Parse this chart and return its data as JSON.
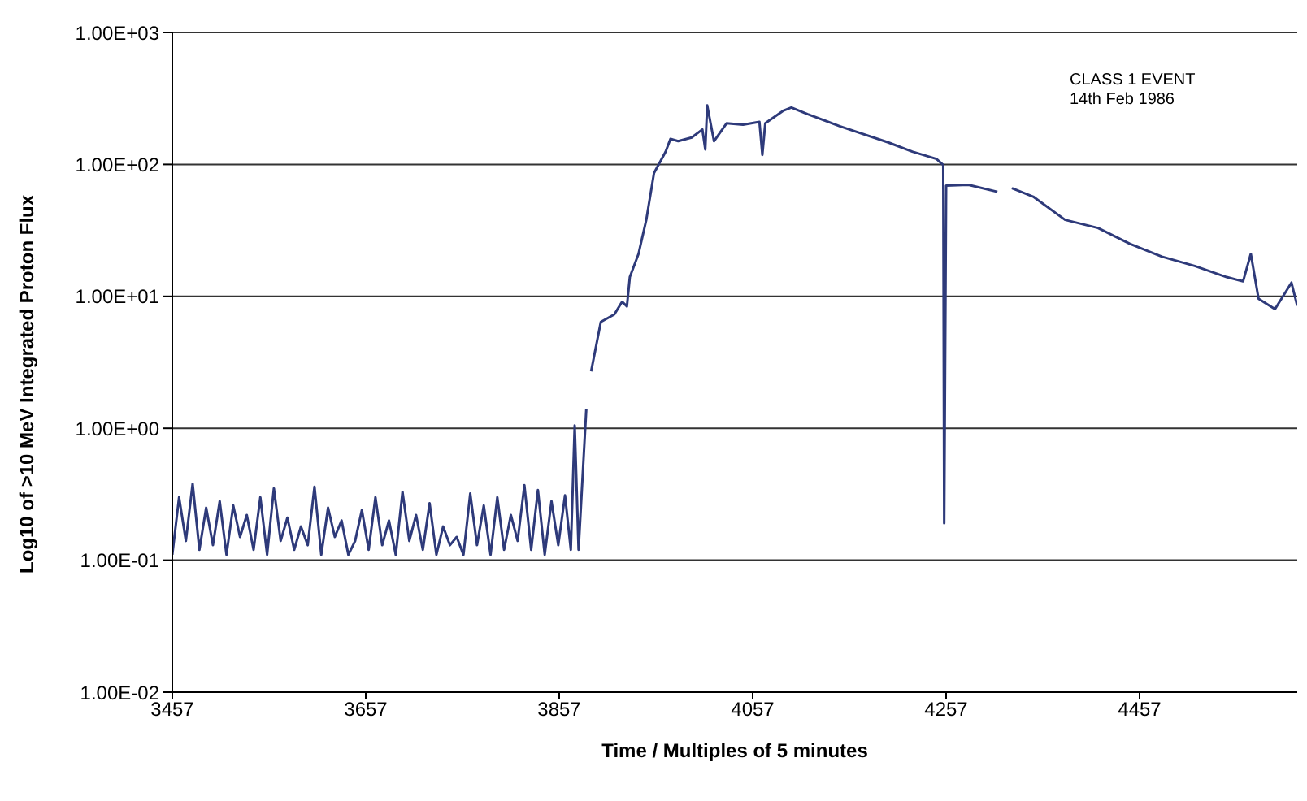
{
  "chart_data": {
    "type": "line",
    "xlabel": "Time / Multiples of 5 minutes",
    "ylabel": "Log10 of >10 MeV Integrated Proton Flux",
    "annotations": [
      "CLASS 1 EVENT",
      "14th Feb 1986"
    ],
    "log": "y",
    "grid": "y",
    "legend": false,
    "marker": "none",
    "line_style": "solid",
    "xlim": [
      3457,
      4620
    ],
    "xticks": [
      3457,
      3657,
      3857,
      4057,
      4257,
      4457
    ],
    "ylim": [
      0.01,
      1000
    ],
    "yticks": [
      {
        "value": 0.01,
        "label": "1.00E-02"
      },
      {
        "value": 0.1,
        "label": "1.00E-01"
      },
      {
        "value": 1,
        "label": "1.00E+00"
      },
      {
        "value": 10,
        "label": "1.00E+01"
      },
      {
        "value": 100,
        "label": "1.00E+02"
      },
      {
        "value": 1000,
        "label": "1.00E+03"
      }
    ],
    "series": [
      {
        "color": "#2e3a7a",
        "x": [
          3457,
          3464,
          3471,
          3478,
          3485,
          3492,
          3499,
          3506,
          3513,
          3520,
          3527,
          3534,
          3541,
          3548,
          3555,
          3562,
          3569,
          3576,
          3583,
          3590,
          3597,
          3604,
          3611,
          3618,
          3625,
          3632,
          3639,
          3646,
          3653,
          3660,
          3667,
          3674,
          3681,
          3688,
          3695,
          3702,
          3709,
          3716,
          3723,
          3730,
          3737,
          3744,
          3751,
          3758,
          3765,
          3772,
          3779,
          3786,
          3793,
          3800,
          3807,
          3814,
          3821,
          3828,
          3835,
          3842,
          3849,
          3856,
          3863,
          3869,
          3873,
          3877,
          3885,
          3888,
          3890,
          3900,
          3914,
          3922,
          3927,
          3930,
          3939,
          3947,
          3955,
          3967,
          3972,
          3980,
          3994,
          4005,
          4008,
          4010,
          4017,
          4030,
          4047,
          4064,
          4067,
          4070,
          4089,
          4097,
          4114,
          4147,
          4197,
          4222,
          4247,
          4254,
          4255,
          4257,
          4280,
          4310,
          4318,
          4325,
          4347,
          4380,
          4414,
          4447,
          4480,
          4514,
          4547,
          4564,
          4572,
          4580,
          4597,
          4614,
          4620
        ],
        "values": [
          0.11,
          0.3,
          0.14,
          0.38,
          0.12,
          0.25,
          0.13,
          0.28,
          0.11,
          0.26,
          0.15,
          0.22,
          0.12,
          0.3,
          0.11,
          0.35,
          0.14,
          0.21,
          0.12,
          0.18,
          0.13,
          0.36,
          0.11,
          0.25,
          0.15,
          0.2,
          0.11,
          0.14,
          0.24,
          0.12,
          0.3,
          0.13,
          0.2,
          0.11,
          0.33,
          0.14,
          0.22,
          0.12,
          0.27,
          0.11,
          0.18,
          0.13,
          0.15,
          0.11,
          0.32,
          0.13,
          0.26,
          0.11,
          0.3,
          0.12,
          0.22,
          0.14,
          0.37,
          0.12,
          0.34,
          0.11,
          0.28,
          0.13,
          0.31,
          0.12,
          1.05,
          0.12,
          1.4,
          null,
          2.7,
          6.4,
          7.3,
          9.1,
          8.4,
          14,
          21,
          38,
          86,
          125,
          156,
          150,
          160,
          184,
          130,
          280,
          150,
          205,
          200,
          210,
          118,
          205,
          256,
          270,
          240,
          195,
          147,
          125,
          110,
          99,
          0.19,
          69,
          70,
          62,
          null,
          66,
          57,
          38,
          33,
          25,
          20,
          17,
          14,
          13,
          21,
          9.6,
          8,
          12.7,
          8.5
        ]
      }
    ]
  }
}
